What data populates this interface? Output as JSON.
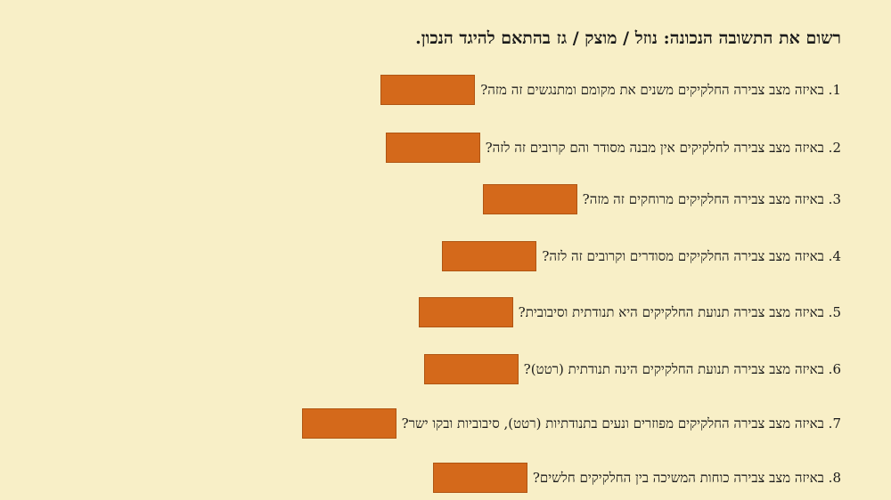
{
  "title": "רשום את התשובה הנכונה: נוזל / מוצק / גז בהתאם להיגד הנכון.",
  "answer_box_color": "#d4691b",
  "background_color": "#f8efc7",
  "questions": [
    {
      "text": "1. באיזה מצב צבירה החלקיקים משנים את מקומם ומתנגשים זה מזה?",
      "answer": ""
    },
    {
      "text": "2. באיזה מצב צבירה לחלקיקים אין מבנה מסודר והם קרובים זה לזה?",
      "answer": ""
    },
    {
      "text": "3. באיזה מצב צבירה החלקיקים מרוחקים זה מזה?",
      "answer": ""
    },
    {
      "text": "4. באיזה מצב צבירה החלקיקים מסודרים וקרובים זה לזה?",
      "answer": ""
    },
    {
      "text": "5. באיזה מצב צבירה תנועת החלקיקים היא תנודתית וסיבובית?",
      "answer": ""
    },
    {
      "text": "6. באיזה מצב צבירה תנועת החלקיקים הינה תנודתית (רטט)?",
      "answer": ""
    },
    {
      "text": "7. באיזה מצב צבירה החלקיקים מפוזרים ונעים בתנודתיות (רטט), סיבוביות ובקו ישר?",
      "answer": ""
    },
    {
      "text": "8. באיזה מצב צבירה כוחות המשיכה בין החלקיקים חלשים?",
      "answer": ""
    }
  ]
}
